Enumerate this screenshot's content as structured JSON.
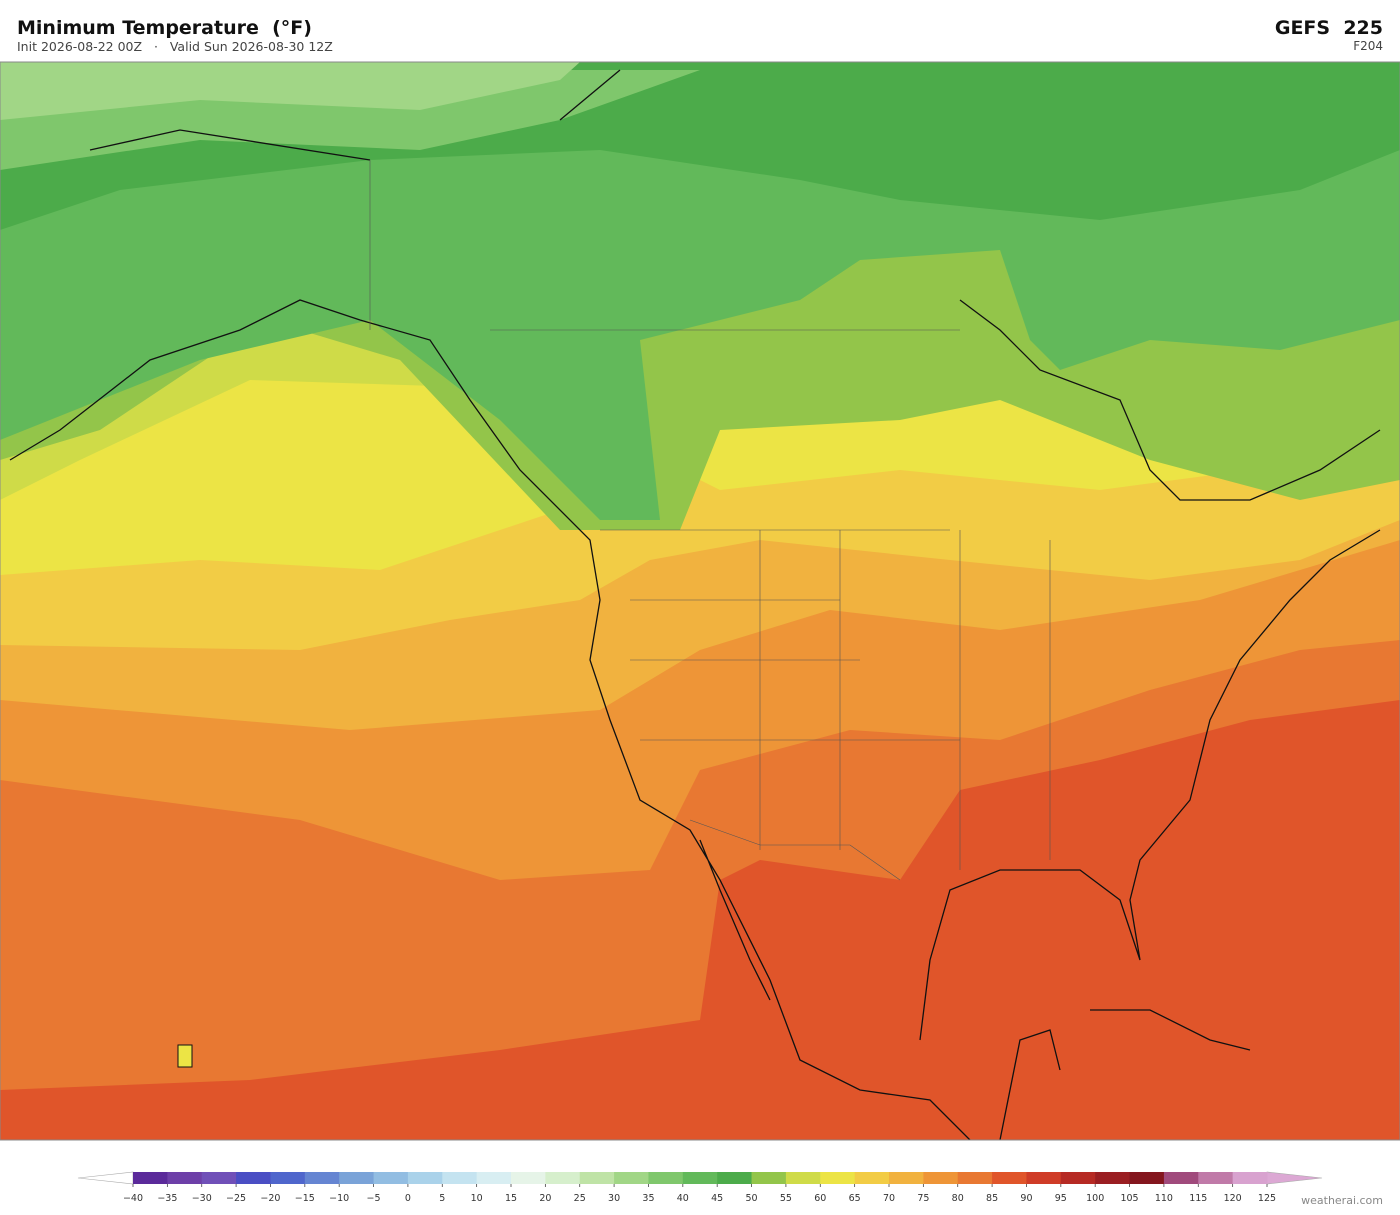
{
  "header": {
    "title": "Minimum Temperature  (°F)",
    "subtitle": "Init 2026-08-22 00Z   ·   Valid Sun 2026-08-30 12Z",
    "model": "GEFS  225",
    "forecast_hour": "F204"
  },
  "colorbar": {
    "ticks": [
      {
        "value": -40,
        "label": "−40"
      },
      {
        "value": -35,
        "label": "−35"
      },
      {
        "value": -30,
        "label": "−30"
      },
      {
        "value": -25,
        "label": "−25"
      },
      {
        "value": -20,
        "label": "−20"
      },
      {
        "value": -15,
        "label": "−15"
      },
      {
        "value": -10,
        "label": "−10"
      },
      {
        "value": -5,
        "label": "−5"
      },
      0,
      5,
      10,
      15,
      20,
      25,
      30,
      35,
      40,
      45,
      50,
      55,
      60,
      65,
      70,
      75,
      80,
      85,
      90,
      95,
      100,
      105,
      110,
      115,
      120,
      125
    ],
    "colors": [
      "#5b2a9a",
      "#6d3fa8",
      "#7050b8",
      "#4a4ec4",
      "#4f66cc",
      "#6585d2",
      "#7aa3d8",
      "#92bde2",
      "#aad2ea",
      "#c4e3f0",
      "#d8eef2",
      "#e6f4e8",
      "#d6efcc",
      "#bfe3a6",
      "#a1d686",
      "#7fc76c",
      "#62b95a",
      "#4cab4a",
      "#93c54a",
      "#cfdb48",
      "#ece445",
      "#f2cc45",
      "#f1b23f",
      "#ee9537",
      "#e87832",
      "#e0552a",
      "#cf3c27",
      "#b62a24",
      "#9a1e22",
      "#84161e",
      "#a04a7c",
      "#c07aa8",
      "#d8a2cf"
    ],
    "under_color": "#ffffff",
    "over_color": "#dca8d4"
  },
  "credit": "weatherai.com"
}
